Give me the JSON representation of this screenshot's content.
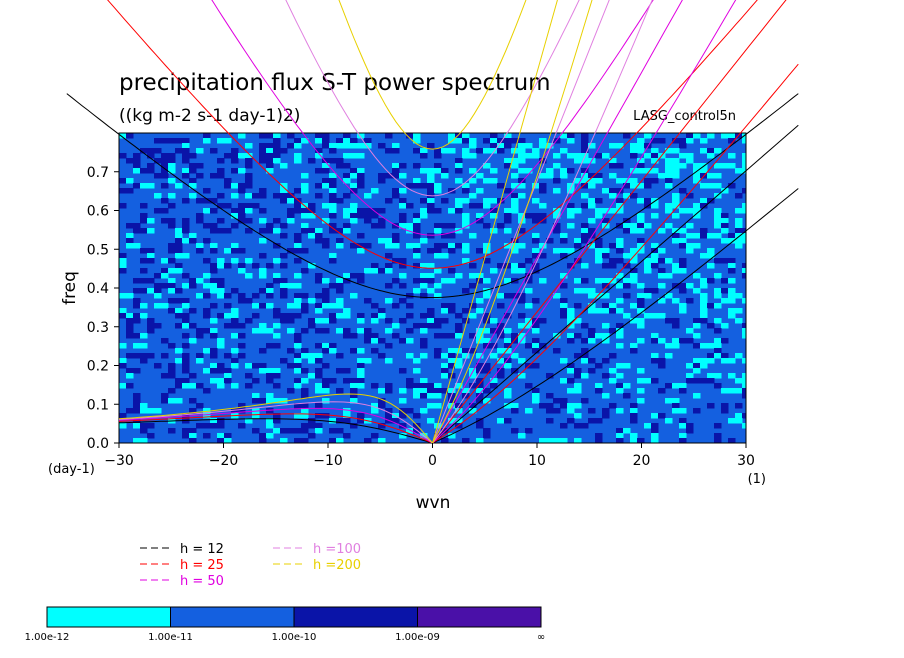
{
  "chart_data": {
    "type": "heatmap",
    "title": "precipitation flux S-T power spectrum",
    "subtitle": "((kg m-2 s-1 day-1)2)",
    "run_label": "LASG_control5n",
    "xlabel": "wvn",
    "ylabel": "freq",
    "x_unit": "(1)",
    "y_unit": "(day-1)",
    "xlim": [
      -30,
      30
    ],
    "ylim": [
      0,
      0.8
    ],
    "xticks": [
      -30,
      -20,
      -10,
      0,
      10,
      20,
      30
    ],
    "xtick_labels": [
      "−30",
      "−20",
      "−10",
      "0",
      "10",
      "20",
      "30"
    ],
    "yticks": [
      0,
      0.1,
      0.2,
      0.3,
      0.4,
      0.5,
      0.6,
      0.7
    ],
    "ytick_labels": [
      "0.0",
      "0.1",
      "0.2",
      "0.3",
      "0.4",
      "0.5",
      "0.6",
      "0.7"
    ],
    "dispersion_curves": [
      {
        "name": "h = 12",
        "h": 12,
        "color": "#000000"
      },
      {
        "name": "h = 25",
        "h": 25,
        "color": "#ff0000"
      },
      {
        "name": "h = 50",
        "h": 50,
        "color": "#e000e0"
      },
      {
        "name": "h =100",
        "h": 100,
        "color": "#e080e0"
      },
      {
        "name": "h =200",
        "h": 200,
        "color": "#e8d000"
      }
    ],
    "colorbar": {
      "levels": [
        "1.00e-12",
        "1.00e-11",
        "1.00e-10",
        "1.00e-09",
        "∞"
      ],
      "colors": [
        "#00ffff",
        "#1460e0",
        "#0a14a8",
        "#4a10a8"
      ]
    }
  }
}
